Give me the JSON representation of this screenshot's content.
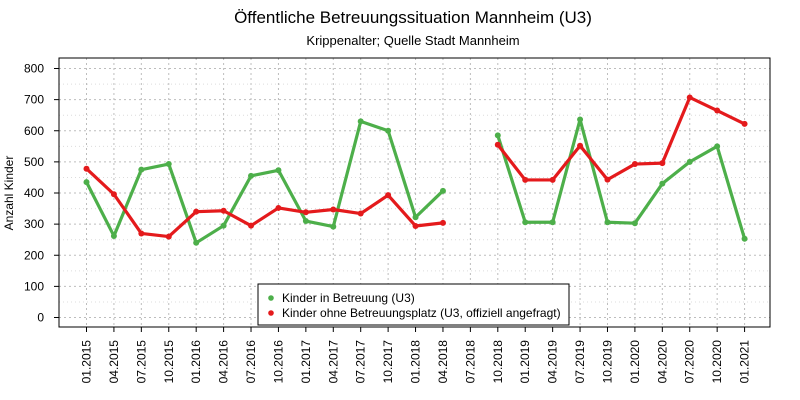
{
  "chart_data": {
    "type": "line",
    "title": "Öffentliche Betreuungssituation Mannheim (U3)",
    "subtitle": "Krippenalter; Quelle Stadt Mannheim",
    "xlabel": "",
    "ylabel": "Anzahl Kinder",
    "ylim": [
      0,
      800
    ],
    "yticks": [
      0,
      100,
      200,
      300,
      400,
      500,
      600,
      700,
      800
    ],
    "grid": true,
    "legend_position": "bottom-center",
    "categories": [
      "01.2015",
      "04.2015",
      "07.2015",
      "10.2015",
      "01.2016",
      "04.2016",
      "07.2016",
      "10.2016",
      "01.2017",
      "04.2017",
      "07.2017",
      "10.2017",
      "01.2018",
      "04.2018",
      "07.2018",
      "10.2018",
      "01.2019",
      "04.2019",
      "07.2019",
      "10.2019",
      "01.2020",
      "04.2020",
      "07.2020",
      "10.2020",
      "01.2021"
    ],
    "series": [
      {
        "name": "Kinder in Betreuung (U3)",
        "color": "#4daf4a",
        "values": [
          435,
          262,
          475,
          493,
          240,
          295,
          455,
          473,
          310,
          292,
          630,
          600,
          322,
          407,
          null,
          585,
          306,
          306,
          636,
          306,
          303,
          430,
          500,
          550,
          253
        ]
      },
      {
        "name": "Kinder ohne Betreuungsplatz (U3, offiziell angefragt)",
        "color": "#e41a1c",
        "values": [
          478,
          396,
          270,
          260,
          340,
          343,
          295,
          352,
          338,
          347,
          334,
          393,
          294,
          304,
          null,
          555,
          442,
          442,
          552,
          443,
          493,
          496,
          707,
          665,
          622
        ]
      }
    ]
  }
}
